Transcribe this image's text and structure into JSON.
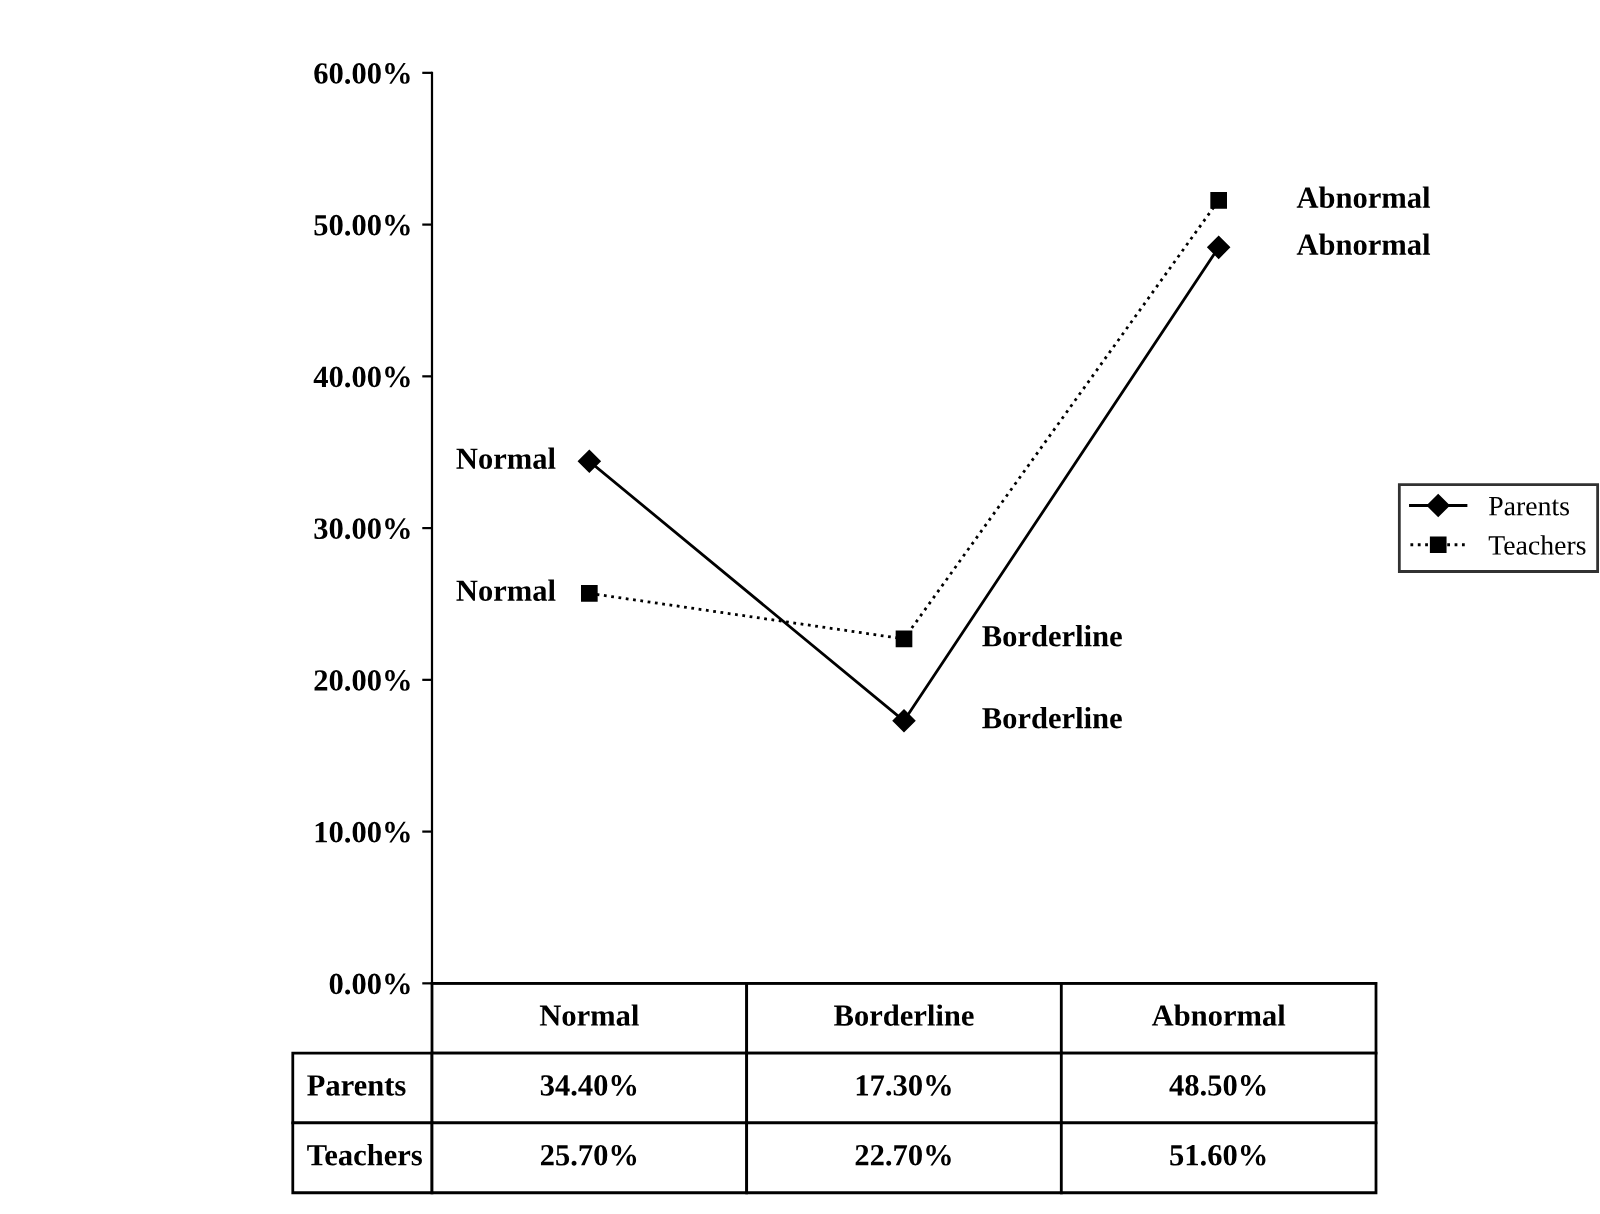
{
  "chart_data": {
    "type": "line",
    "categories": [
      "Normal",
      "Borderline",
      "Abnormal"
    ],
    "series": [
      {
        "name": "Parents",
        "color": "#000000",
        "marker": "diamond",
        "line_style": "solid",
        "values": [
          34.4,
          17.3,
          48.5
        ],
        "value_labels": [
          "34.40%",
          "17.30%",
          "48.50%"
        ]
      },
      {
        "name": "Teachers",
        "color": "#000000",
        "marker": "square",
        "line_style": "dotted",
        "values": [
          25.7,
          22.7,
          51.6
        ],
        "value_labels": [
          "25.70%",
          "22.70%",
          "51.60%"
        ]
      }
    ],
    "ylim": [
      0,
      60
    ],
    "yticks": [
      {
        "value": 0,
        "label": "0.00%"
      },
      {
        "value": 10,
        "label": "10.00%"
      },
      {
        "value": 20,
        "label": "20.00%"
      },
      {
        "value": 30,
        "label": "30.00%"
      },
      {
        "value": 40,
        "label": "40.00%"
      },
      {
        "value": 50,
        "label": "50.00%"
      },
      {
        "value": 60,
        "label": "60.00%"
      }
    ],
    "grid": false,
    "legend": "right",
    "annotations": [
      {
        "text": "Normal",
        "x": "Normal",
        "y": 34.4
      },
      {
        "text": "Normal",
        "x": "Normal",
        "y": 25.7
      },
      {
        "text": "Borderline",
        "x": "Borderline",
        "y": 22.7
      },
      {
        "text": "Borderline",
        "x": "Borderline",
        "y": 17.3
      },
      {
        "text": "Abnormal",
        "x": "Abnormal",
        "y": 51.6
      },
      {
        "text": "Abnormal",
        "x": "Abnormal",
        "y": 48.5
      }
    ]
  }
}
